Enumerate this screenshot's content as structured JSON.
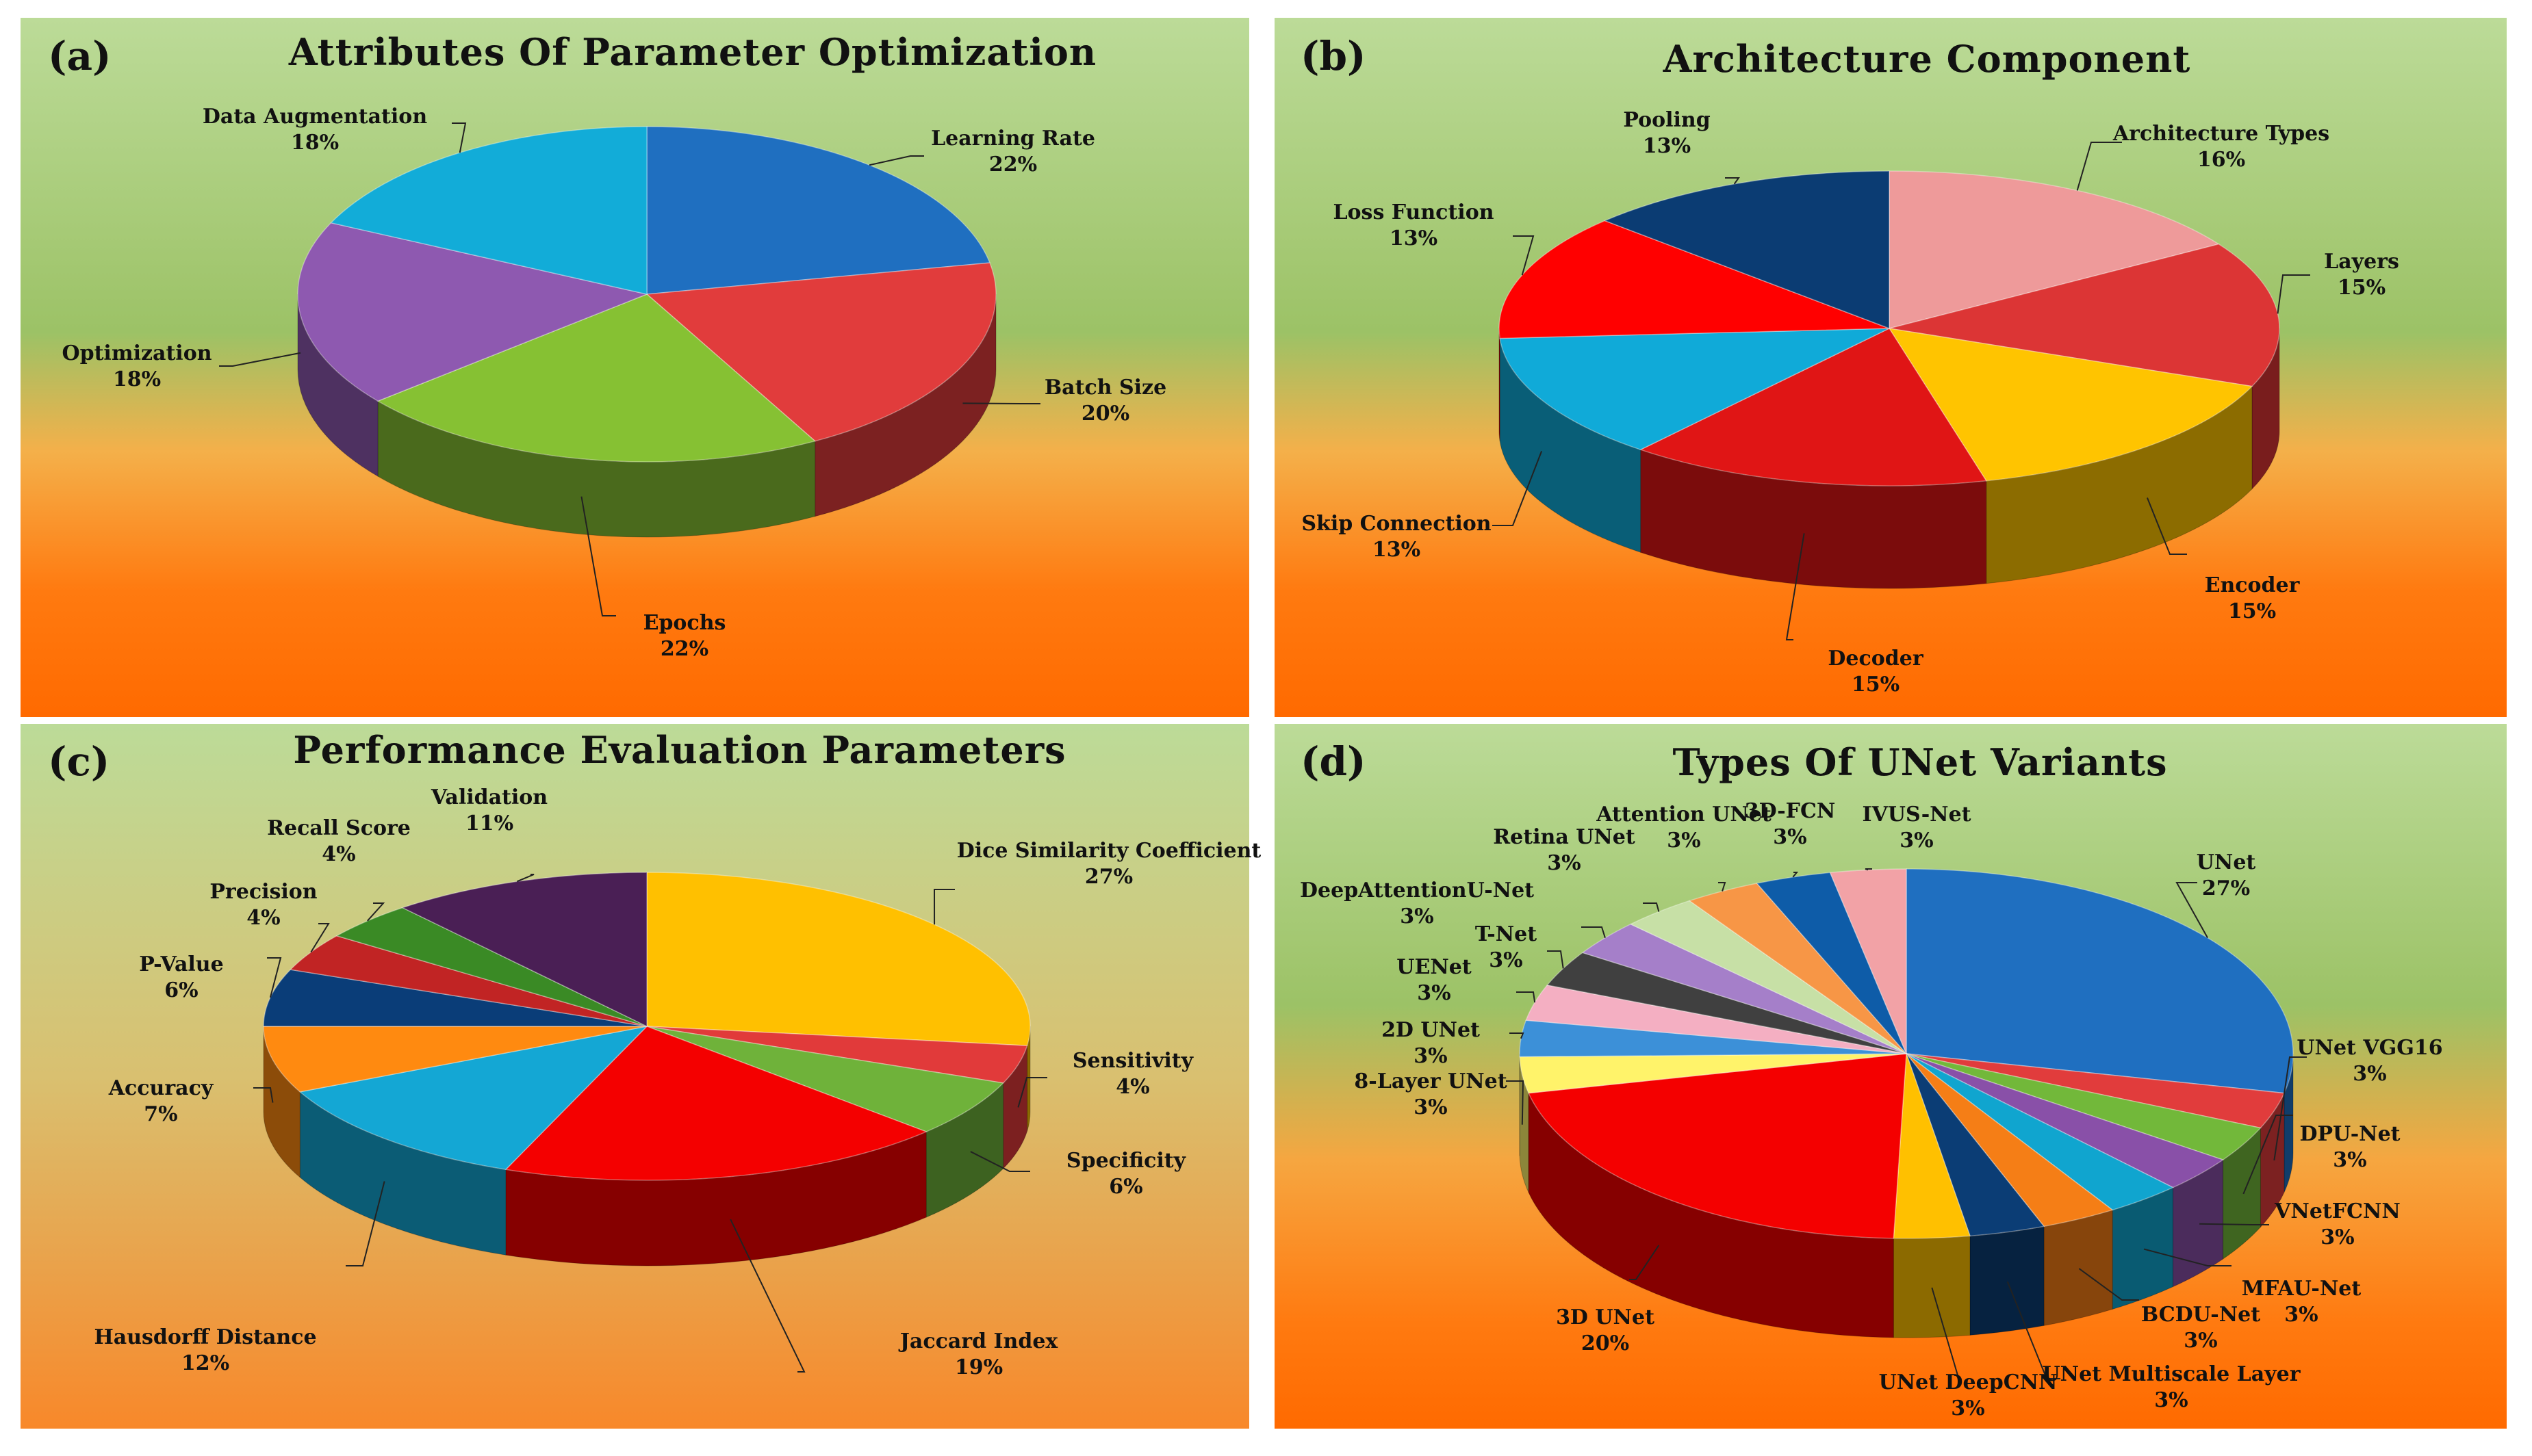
{
  "chart_data": [
    {
      "type": "pie",
      "panel_label": "(a)",
      "title": "Attributes  Of Parameter Optimization",
      "slices": [
        {
          "label": "Learning Rate",
          "value": 22,
          "pct": "22%",
          "color": "#1F6FC0"
        },
        {
          "label": "Batch Size",
          "value": 20,
          "pct": "20%",
          "color": "#E13C3C"
        },
        {
          "label": "Epochs",
          "value": 22,
          "pct": "22%",
          "color": "#86C133"
        },
        {
          "label": "Optimization",
          "value": 18,
          "pct": "18%",
          "color": "#8E59B0"
        },
        {
          "label": "Data Augmentation",
          "value": 18,
          "pct": "18%",
          "color": "#12ACD8"
        }
      ]
    },
    {
      "type": "pie",
      "panel_label": "(b)",
      "title": "Architecture  Component",
      "slices": [
        {
          "label": "Architecture Types",
          "value": 16,
          "pct": "16%",
          "color": "#EE9A9A"
        },
        {
          "label": "Layers",
          "value": 15,
          "pct": "15%",
          "color": "#DC3535"
        },
        {
          "label": "Encoder",
          "value": 15,
          "pct": "15%",
          "color": "#FFC400"
        },
        {
          "label": "Decoder",
          "value": 15,
          "pct": "15%",
          "color": "#E01515"
        },
        {
          "label": "Skip Connection",
          "value": 13,
          "pct": "13%",
          "color": "#10AAD8"
        },
        {
          "label": "Loss Function",
          "value": 13,
          "pct": "13%",
          "color": "#FF0000"
        },
        {
          "label": "Pooling",
          "value": 13,
          "pct": "13%",
          "color": "#0B3C73"
        }
      ]
    },
    {
      "type": "pie",
      "panel_label": "(c)",
      "title": "Performance  Evaluation  Parameters",
      "slices": [
        {
          "label": "Dice Similarity Coefficient",
          "value": 27,
          "pct": "27%",
          "color": "#FFC000"
        },
        {
          "label": "Sensitivity",
          "value": 4,
          "pct": "4%",
          "color": "#E13A3A"
        },
        {
          "label": "Specificity",
          "value": 6,
          "pct": "6%",
          "color": "#6FB23A"
        },
        {
          "label": "Jaccard Index",
          "value": 19,
          "pct": "19%",
          "color": "#F40000"
        },
        {
          "label": "Hausdorff Distance",
          "value": 12,
          "pct": "12%",
          "color": "#14A7D4"
        },
        {
          "label": "Accuracy",
          "value": 7,
          "pct": "7%",
          "color": "#FF8A10"
        },
        {
          "label": "P-Value",
          "value": 6,
          "pct": "6%",
          "color": "#0A3D78"
        },
        {
          "label": "Precision",
          "value": 4,
          "pct": "4%",
          "color": "#C12424"
        },
        {
          "label": "Recall Score",
          "value": 4,
          "pct": "4%",
          "color": "#3A8A25"
        },
        {
          "label": "Validation",
          "value": 11,
          "pct": "11%",
          "color": "#4A1F55"
        }
      ]
    },
    {
      "type": "pie",
      "panel_label": "(d)",
      "title": "Types  Of  UNet  Variants",
      "slices": [
        {
          "label": "UNet",
          "value": 27,
          "pct": "27%",
          "color": "#1F6FC0"
        },
        {
          "label": "UNet VGG16",
          "value": 3,
          "pct": "3%",
          "color": "#E13C3C"
        },
        {
          "label": "DPU-Net",
          "value": 3,
          "pct": "3%",
          "color": "#72B83A"
        },
        {
          "label": "VNetFCNN",
          "value": 3,
          "pct": "3%",
          "color": "#8950A8"
        },
        {
          "label": "MFAU-Net",
          "value": 3,
          "pct": "3%",
          "color": "#10A5CF"
        },
        {
          "label": "BCDU-Net",
          "value": 3,
          "pct": "3%",
          "color": "#F57E16"
        },
        {
          "label": "UNet Multiscale Layer",
          "value": 3,
          "pct": "3%",
          "color": "#0B3D75"
        },
        {
          "label": "UNet DeepCNN",
          "value": 3,
          "pct": "3%",
          "color": "#FFC000"
        },
        {
          "label": "3D UNet",
          "value": 20,
          "pct": "20%",
          "color": "#F40000"
        },
        {
          "label": "8-Layer UNet",
          "value": 3,
          "pct": "3%",
          "color": "#FFF36A"
        },
        {
          "label": "2D UNet",
          "value": 3,
          "pct": "3%",
          "color": "#3C90D8"
        },
        {
          "label": "UENet",
          "value": 3,
          "pct": "3%",
          "color": "#F4AFC2"
        },
        {
          "label": "T-Net",
          "value": 3,
          "pct": "3%",
          "color": "#404040"
        },
        {
          "label": "DeepAttentionU-Net",
          "value": 3,
          "pct": "3%",
          "color": "#A57FC9"
        },
        {
          "label": "Retina UNet",
          "value": 3,
          "pct": "3%",
          "color": "#C7E0A6"
        },
        {
          "label": "Attention UNet",
          "value": 3,
          "pct": "3%",
          "color": "#F79646"
        },
        {
          "label": "3D-FCN",
          "value": 3,
          "pct": "3%",
          "color": "#0E5CA8"
        },
        {
          "label": "IVUS-Net",
          "value": 3,
          "pct": "3%",
          "color": "#F2A2A6"
        }
      ]
    }
  ]
}
